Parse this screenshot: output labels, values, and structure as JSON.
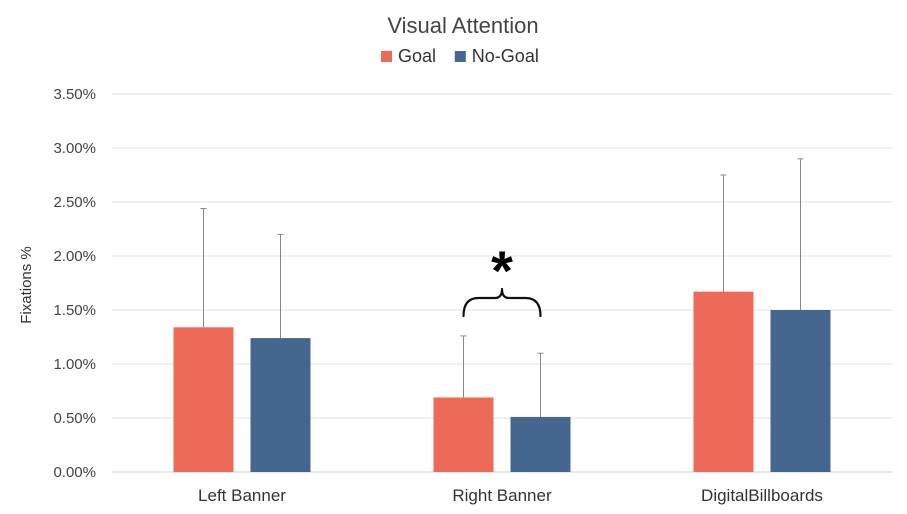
{
  "chart_data": {
    "type": "bar",
    "title": "Visual Attention",
    "ylabel": "Fixations %",
    "xlabel": "",
    "categories": [
      "Left Banner",
      "Right Banner",
      "DigitalBillboards"
    ],
    "series": [
      {
        "name": "Goal",
        "color": "#ed6a59",
        "values": [
          1.34,
          0.69,
          1.67
        ],
        "error_upper": [
          2.44,
          1.26,
          2.75
        ]
      },
      {
        "name": "No-Goal",
        "color": "#44668f",
        "values": [
          1.24,
          0.51,
          1.5
        ],
        "error_upper": [
          2.2,
          1.1,
          2.9
        ]
      }
    ],
    "ylim": [
      0,
      3.5
    ],
    "yticks": [
      0,
      0.5,
      1.0,
      1.5,
      2.0,
      2.5,
      3.0,
      3.5
    ],
    "ytick_labels": [
      "0.00%",
      "0.50%",
      "1.00%",
      "1.50%",
      "2.00%",
      "2.50%",
      "3.00%",
      "3.50%"
    ],
    "grid": true,
    "legend_position": "top-center",
    "annotation": {
      "text": "*",
      "category_index": 1
    }
  }
}
